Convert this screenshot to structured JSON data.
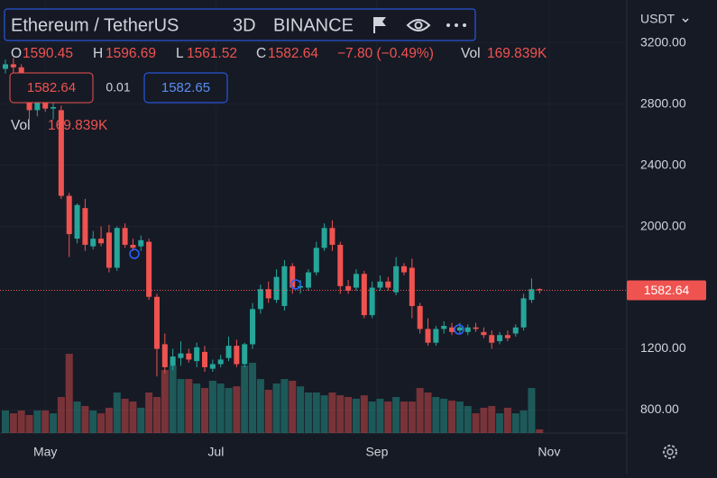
{
  "header": {
    "symbol": "Ethereum / TetherUS",
    "interval": "3D",
    "exchange": "BINANCE"
  },
  "ohlc_legend": {
    "o": "O",
    "h": "H",
    "l": "L",
    "c": "C",
    "change": "−7.80 (−0.49%)",
    "vol": "Vol",
    "vol_value": "169.839K"
  },
  "order_panel": {
    "sell": "1582.64",
    "spread": "0.01",
    "buy": "1582.65"
  },
  "volume_legend": {
    "label": "Vol",
    "value": "169.839K"
  },
  "currency": "USDT",
  "chart_data": {
    "type": "candlestick",
    "categories": [
      null,
      null,
      null,
      null,
      null,
      null,
      null,
      null,
      null,
      null,
      null,
      null,
      null,
      null,
      null,
      null,
      null,
      null,
      null,
      null,
      null,
      null,
      null,
      null,
      null,
      null,
      null,
      null,
      null,
      null,
      null,
      null,
      null,
      null,
      null,
      null,
      null,
      null,
      null,
      null,
      null,
      null,
      null,
      null,
      null,
      null,
      null,
      null,
      null,
      null,
      null,
      null,
      null,
      null,
      null,
      null,
      null,
      null,
      null,
      null,
      null,
      null,
      null,
      null,
      null,
      null,
      null,
      null
    ],
    "open": [
      3030,
      3060,
      3040,
      2900,
      2760,
      2830,
      2770,
      2760,
      2200,
      1920,
      2120,
      1870,
      1920,
      1960,
      1730,
      1990,
      1880,
      1870,
      1900,
      1540,
      1230,
      1090,
      1140,
      1170,
      1120,
      1180,
      1070,
      1100,
      1140,
      1220,
      1100,
      1230,
      1460,
      1590,
      1520,
      1480,
      1740,
      1600,
      1600,
      1700,
      1860,
      1990,
      1880,
      1610,
      1600,
      1690,
      1420,
      1600,
      1640,
      1570,
      1740,
      1730,
      1480,
      1330,
      1240,
      1330,
      1340,
      1320,
      1310,
      1340,
      1310,
      1290,
      1250,
      1290,
      1300,
      1340,
      1520,
      1590.45
    ],
    "high": [
      3090,
      3100,
      3060,
      2950,
      2870,
      2860,
      2820,
      2790,
      2220,
      2150,
      2180,
      1970,
      2000,
      2010,
      2000,
      2020,
      1920,
      1940,
      1920,
      1560,
      1300,
      1200,
      1250,
      1200,
      1240,
      1220,
      1130,
      1160,
      1280,
      1260,
      1240,
      1500,
      1620,
      1640,
      1720,
      1780,
      1760,
      1650,
      1720,
      1900,
      2020,
      2040,
      1900,
      1650,
      1720,
      1710,
      1640,
      1680,
      1670,
      1800,
      1760,
      1790,
      1500,
      1400,
      1350,
      1380,
      1370,
      1370,
      1360,
      1370,
      1340,
      1320,
      1310,
      1320,
      1360,
      1560,
      1660,
      1596.69
    ],
    "low": [
      3000,
      2980,
      2860,
      2700,
      2720,
      2750,
      2700,
      2180,
      1800,
      1890,
      1840,
      1850,
      1870,
      1700,
      1710,
      1860,
      1840,
      1840,
      1520,
      1020,
      1040,
      1060,
      1090,
      1110,
      1080,
      1050,
      1050,
      1080,
      1120,
      1080,
      1080,
      1200,
      1430,
      1500,
      1500,
      1450,
      1560,
      1560,
      1580,
      1680,
      1840,
      1840,
      1560,
      1560,
      1580,
      1400,
      1400,
      1580,
      1580,
      1550,
      1680,
      1400,
      1300,
      1220,
      1220,
      1300,
      1290,
      1300,
      1290,
      1310,
      1270,
      1200,
      1230,
      1250,
      1280,
      1320,
      1500,
      1561.52
    ],
    "close": [
      3060,
      3040,
      2900,
      2760,
      2830,
      2770,
      2780,
      2200,
      1950,
      2140,
      1880,
      1920,
      1890,
      1730,
      1990,
      1880,
      1860,
      1910,
      1540,
      1200,
      1080,
      1150,
      1170,
      1130,
      1210,
      1080,
      1100,
      1130,
      1220,
      1100,
      1230,
      1460,
      1590,
      1530,
      1670,
      1740,
      1600,
      1610,
      1700,
      1860,
      1990,
      1880,
      1610,
      1580,
      1690,
      1420,
      1600,
      1640,
      1600,
      1740,
      1700,
      1480,
      1330,
      1240,
      1330,
      1350,
      1310,
      1340,
      1340,
      1330,
      1290,
      1240,
      1290,
      1270,
      1340,
      1530,
      1590,
      1582.64
    ],
    "volume": [
      1050,
      920,
      1050,
      840,
      1050,
      1050,
      920,
      1680,
      3700,
      1470,
      1260,
      1050,
      920,
      1180,
      1890,
      1600,
      1470,
      1180,
      1890,
      1680,
      2940,
      3150,
      2520,
      2520,
      2310,
      2100,
      2440,
      2310,
      2100,
      2180,
      3150,
      3280,
      2520,
      2020,
      2310,
      2520,
      2440,
      2180,
      1890,
      1890,
      1760,
      1890,
      1760,
      1680,
      1600,
      1760,
      1470,
      1600,
      1470,
      1680,
      1470,
      1470,
      2100,
      1890,
      1680,
      1600,
      1510,
      1470,
      1260,
      920,
      1180,
      1260,
      920,
      1180,
      920,
      1050,
      2100,
      169.839
    ],
    "up_color": "#26a69a",
    "down_color": "#ef5350",
    "ylim": [
      650,
      3480
    ],
    "yticks": [
      {
        "value": 3200,
        "label": "3200.00"
      },
      {
        "value": 2800,
        "label": "2800.00"
      },
      {
        "value": 2400,
        "label": "2400.00"
      },
      {
        "value": 2000,
        "label": "2000.00"
      },
      {
        "value": 1200,
        "label": "1200.00"
      },
      {
        "value": 800,
        "label": "800.00"
      }
    ],
    "xticks": [
      {
        "value": 5,
        "label": "May"
      },
      {
        "value": 26.4,
        "label": "Jul"
      },
      {
        "value": 46.6,
        "label": "Sep"
      },
      {
        "value": 68.2,
        "label": "Nov"
      }
    ]
  }
}
